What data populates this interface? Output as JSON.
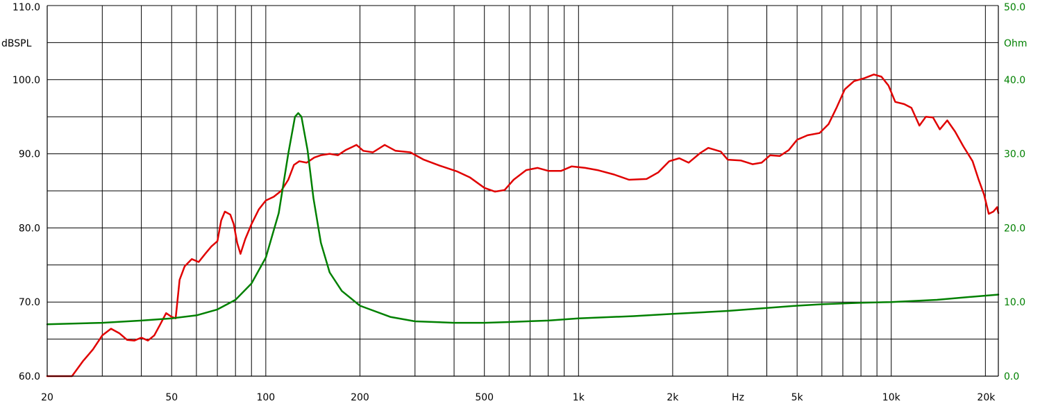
{
  "chart_data": {
    "type": "line",
    "x_scale": "log",
    "xlim": [
      20,
      22000
    ],
    "ylim_left": [
      60,
      110
    ],
    "ylim_right": [
      0,
      50
    ],
    "left_unit": "dBSPL",
    "right_unit": "Ohm",
    "x_unit": "Hz",
    "grid": true,
    "x_ticks": [
      {
        "value": 20,
        "label": "20"
      },
      {
        "value": 50,
        "label": "50"
      },
      {
        "value": 100,
        "label": "100"
      },
      {
        "value": 200,
        "label": "200"
      },
      {
        "value": 500,
        "label": "500"
      },
      {
        "value": 1000,
        "label": "1k"
      },
      {
        "value": 2000,
        "label": "2k"
      },
      {
        "value": 5000,
        "label": "5k"
      },
      {
        "value": 10000,
        "label": "10k"
      },
      {
        "value": 20000,
        "label": "20k"
      }
    ],
    "left_ticks": [
      {
        "value": 110,
        "label": "110.0"
      },
      {
        "value": 100,
        "label": "100.0"
      },
      {
        "value": 90,
        "label": "90.0"
      },
      {
        "value": 80,
        "label": "80.0"
      },
      {
        "value": 70,
        "label": "70.0"
      },
      {
        "value": 60,
        "label": "60.0"
      }
    ],
    "right_ticks": [
      {
        "value": 50,
        "label": "50.0"
      },
      {
        "value": 40,
        "label": "40.0"
      },
      {
        "value": 30,
        "label": "30.0"
      },
      {
        "value": 20,
        "label": "20.0"
      },
      {
        "value": 10,
        "label": "10.0"
      },
      {
        "value": 0,
        "label": "0.0"
      }
    ],
    "series": [
      {
        "axis": "left",
        "color": "#e00000",
        "points": [
          [
            20,
            60
          ],
          [
            24,
            60
          ],
          [
            26,
            62
          ],
          [
            28,
            63.6
          ],
          [
            30,
            65.5
          ],
          [
            32,
            66.4
          ],
          [
            34,
            65.8
          ],
          [
            36,
            64.9
          ],
          [
            38,
            64.8
          ],
          [
            40,
            65.2
          ],
          [
            42,
            64.8
          ],
          [
            44,
            65.5
          ],
          [
            46,
            67
          ],
          [
            48,
            68.5
          ],
          [
            50,
            68
          ],
          [
            51.5,
            67.8
          ],
          [
            53,
            73
          ],
          [
            55,
            74.8
          ],
          [
            58,
            75.8
          ],
          [
            61,
            75.4
          ],
          [
            64,
            76.5
          ],
          [
            67,
            77.5
          ],
          [
            70,
            78.2
          ],
          [
            72,
            81
          ],
          [
            74,
            82.2
          ],
          [
            77,
            81.8
          ],
          [
            79,
            80.5
          ],
          [
            81,
            78
          ],
          [
            83,
            76.5
          ],
          [
            86,
            78.5
          ],
          [
            90,
            80.5
          ],
          [
            95,
            82.5
          ],
          [
            100,
            83.7
          ],
          [
            106,
            84.2
          ],
          [
            112,
            85
          ],
          [
            118,
            86.5
          ],
          [
            123,
            88.5
          ],
          [
            128,
            89
          ],
          [
            135,
            88.8
          ],
          [
            143,
            89.5
          ],
          [
            150,
            89.8
          ],
          [
            160,
            90
          ],
          [
            170,
            89.8
          ],
          [
            180,
            90.5
          ],
          [
            195,
            91.2
          ],
          [
            205,
            90.4
          ],
          [
            220,
            90.2
          ],
          [
            240,
            91.2
          ],
          [
            260,
            90.4
          ],
          [
            290,
            90.2
          ],
          [
            320,
            89.2
          ],
          [
            360,
            88.4
          ],
          [
            410,
            87.6
          ],
          [
            450,
            86.8
          ],
          [
            500,
            85.4
          ],
          [
            540,
            84.9
          ],
          [
            580,
            85.1
          ],
          [
            620,
            86.5
          ],
          [
            680,
            87.8
          ],
          [
            740,
            88.1
          ],
          [
            800,
            87.7
          ],
          [
            880,
            87.7
          ],
          [
            950,
            88.3
          ],
          [
            1050,
            88.1
          ],
          [
            1150,
            87.8
          ],
          [
            1300,
            87.2
          ],
          [
            1450,
            86.5
          ],
          [
            1650,
            86.6
          ],
          [
            1800,
            87.5
          ],
          [
            1950,
            89
          ],
          [
            2100,
            89.4
          ],
          [
            2250,
            88.8
          ],
          [
            2450,
            90.1
          ],
          [
            2600,
            90.8
          ],
          [
            2850,
            90.3
          ],
          [
            3000,
            89.2
          ],
          [
            3300,
            89.1
          ],
          [
            3600,
            88.6
          ],
          [
            3850,
            88.8
          ],
          [
            4100,
            89.8
          ],
          [
            4400,
            89.7
          ],
          [
            4700,
            90.5
          ],
          [
            5000,
            91.9
          ],
          [
            5400,
            92.5
          ],
          [
            5900,
            92.8
          ],
          [
            6300,
            94
          ],
          [
            6700,
            96.3
          ],
          [
            7100,
            98.7
          ],
          [
            7600,
            99.8
          ],
          [
            8200,
            100.2
          ],
          [
            8800,
            100.7
          ],
          [
            9300,
            100.4
          ],
          [
            9800,
            99.2
          ],
          [
            10300,
            97
          ],
          [
            11000,
            96.7
          ],
          [
            11600,
            96.2
          ],
          [
            12300,
            93.8
          ],
          [
            12900,
            95
          ],
          [
            13600,
            94.9
          ],
          [
            14300,
            93.3
          ],
          [
            15100,
            94.5
          ],
          [
            16000,
            93
          ],
          [
            17000,
            91
          ],
          [
            18200,
            89
          ],
          [
            19000,
            86.6
          ],
          [
            19800,
            84.5
          ],
          [
            20500,
            81.9
          ],
          [
            21200,
            82.2
          ],
          [
            21800,
            82.8
          ],
          [
            22000,
            82
          ]
        ]
      },
      {
        "axis": "right",
        "color": "#008000",
        "points": [
          [
            20,
            7
          ],
          [
            30,
            7.2
          ],
          [
            40,
            7.5
          ],
          [
            50,
            7.8
          ],
          [
            60,
            8.2
          ],
          [
            70,
            9
          ],
          [
            80,
            10.3
          ],
          [
            90,
            12.5
          ],
          [
            100,
            16
          ],
          [
            110,
            22
          ],
          [
            118,
            30
          ],
          [
            124,
            35
          ],
          [
            127,
            35.5
          ],
          [
            130,
            35
          ],
          [
            136,
            30.5
          ],
          [
            142,
            24
          ],
          [
            150,
            18
          ],
          [
            160,
            14
          ],
          [
            175,
            11.5
          ],
          [
            200,
            9.5
          ],
          [
            250,
            8
          ],
          [
            300,
            7.4
          ],
          [
            400,
            7.2
          ],
          [
            500,
            7.2
          ],
          [
            600,
            7.3
          ],
          [
            800,
            7.5
          ],
          [
            1000,
            7.8
          ],
          [
            1500,
            8.1
          ],
          [
            2000,
            8.4
          ],
          [
            3000,
            8.8
          ],
          [
            4000,
            9.2
          ],
          [
            5000,
            9.5
          ],
          [
            6000,
            9.7
          ],
          [
            8000,
            9.9
          ],
          [
            10000,
            10
          ],
          [
            14000,
            10.3
          ],
          [
            18000,
            10.7
          ],
          [
            22000,
            11
          ]
        ]
      }
    ]
  }
}
